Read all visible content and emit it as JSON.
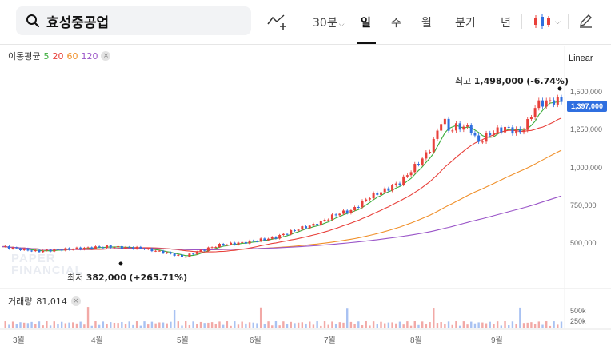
{
  "search": {
    "query": "효성중공업"
  },
  "toolbar": {
    "tabs": [
      "30분",
      "일",
      "주",
      "월",
      "분기",
      "년"
    ],
    "active_tab": "일",
    "chart_type_icon": "line-chart-add-icon",
    "candle_icon": "candlestick-icon",
    "edit_icon": "pencil-icon"
  },
  "indicators": {
    "ma_label": "이동평균",
    "ma_periods": [
      {
        "label": "5",
        "color": "#3cae3c"
      },
      {
        "label": "20",
        "color": "#e8403a"
      },
      {
        "label": "60",
        "color": "#f0902a"
      },
      {
        "label": "120",
        "color": "#9a55c8"
      }
    ],
    "scale": "Linear"
  },
  "annotations": {
    "high_label": "최고",
    "high_value": "1,498,000",
    "high_change": "(-6.74%)",
    "low_label": "최저",
    "low_value": "382,000",
    "low_change": "(+265.71%)"
  },
  "current_price": "1,397,000",
  "watermark": "PAPER FINANCIAL",
  "volume": {
    "label": "거래량",
    "value": "81,014",
    "ticks": [
      "500k",
      "250k"
    ]
  },
  "chart_data": {
    "type": "candlestick",
    "y_ticks": [
      "1,500,000",
      "1,250,000",
      "1,000,000",
      "750,000",
      "500,000"
    ],
    "y_tick_values": [
      1500000,
      1250000,
      1000000,
      750000,
      500000
    ],
    "x_ticks": [
      "3월",
      "4월",
      "5월",
      "6월",
      "7월",
      "8월",
      "9월"
    ],
    "colors": {
      "up": "#e8403a",
      "down": "#2f6fe0",
      "accent": "#2f6fe0"
    }
  }
}
